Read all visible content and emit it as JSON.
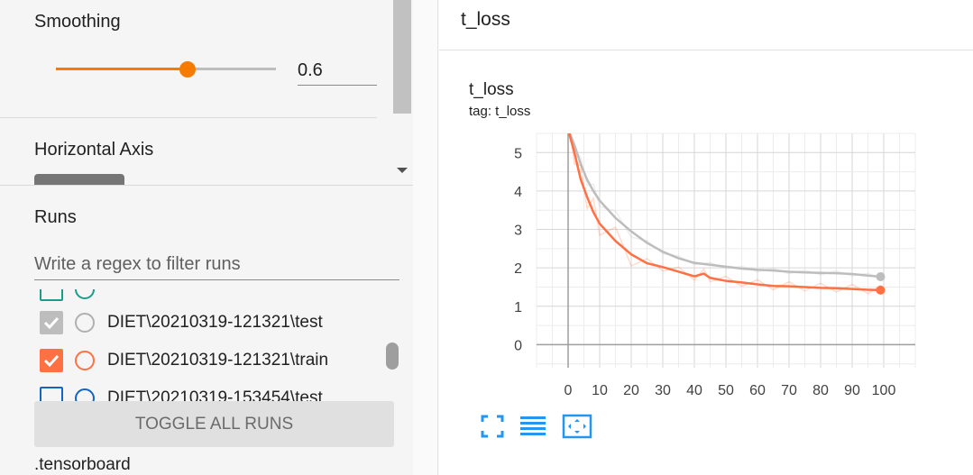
{
  "sidebar": {
    "smoothing": {
      "label": "Smoothing",
      "value": "0.6",
      "slider_fraction": 0.6
    },
    "horizontal_axis": {
      "label": "Horizontal Axis"
    },
    "runs": {
      "label": "Runs",
      "filter_placeholder": "Write a regex to filter runs",
      "items": [
        {
          "name": "",
          "checked": false,
          "color": "#1a9e8a"
        },
        {
          "name": "DIET\\20210319-121321\\test",
          "checked": true,
          "color": "#bdbdbd",
          "radio_color": "#b0b0b0"
        },
        {
          "name": "DIET\\20210319-121321\\train",
          "checked": true,
          "color": "#ff7043",
          "radio_color": "#ff7043"
        },
        {
          "name": "DIET\\20210319-153454\\test",
          "checked": false,
          "color": "#1565c0",
          "radio_color": "#1565c0"
        }
      ],
      "toggle_all_label": "TOGGLE ALL RUNS",
      "logdir": ".tensorboard"
    }
  },
  "main": {
    "header_title": "t_loss",
    "card": {
      "title": "t_loss",
      "tag": "tag: t_loss"
    },
    "tools": [
      "fullscreen-icon",
      "data-table-icon",
      "fit-domain-icon"
    ],
    "accent_color": "#2196f3"
  },
  "chart_data": {
    "type": "line",
    "title": "",
    "xlabel": "",
    "ylabel": "",
    "xlim": [
      -10,
      110
    ],
    "ylim": [
      -0.6,
      5.5
    ],
    "xticks": [
      0,
      10,
      20,
      30,
      40,
      50,
      60,
      70,
      80,
      90,
      100
    ],
    "yticks": [
      0,
      1,
      2,
      3,
      4,
      5
    ],
    "grid": true,
    "series": [
      {
        "color": "#bdbdbd",
        "x": [
          0,
          2,
          4,
          6,
          8,
          10,
          15,
          20,
          25,
          30,
          35,
          40,
          45,
          50,
          55,
          60,
          65,
          70,
          75,
          80,
          85,
          90,
          95,
          99
        ],
        "y": [
          5.6,
          5.2,
          4.7,
          4.3,
          4.0,
          3.75,
          3.3,
          2.95,
          2.65,
          2.42,
          2.25,
          2.13,
          2.08,
          2.03,
          1.98,
          1.95,
          1.93,
          1.9,
          1.88,
          1.87,
          1.86,
          1.84,
          1.8,
          1.77
        ]
      },
      {
        "color": "#ff7043",
        "x": [
          0,
          2,
          4,
          6,
          8,
          10,
          15,
          20,
          25,
          30,
          35,
          40,
          43,
          45,
          50,
          55,
          60,
          65,
          70,
          75,
          80,
          85,
          90,
          95,
          99
        ],
        "y": [
          5.6,
          5.0,
          4.3,
          3.85,
          3.45,
          3.15,
          2.7,
          2.35,
          2.12,
          2.02,
          1.9,
          1.78,
          1.85,
          1.74,
          1.66,
          1.62,
          1.57,
          1.53,
          1.52,
          1.5,
          1.48,
          1.47,
          1.45,
          1.43,
          1.42
        ]
      }
    ]
  }
}
